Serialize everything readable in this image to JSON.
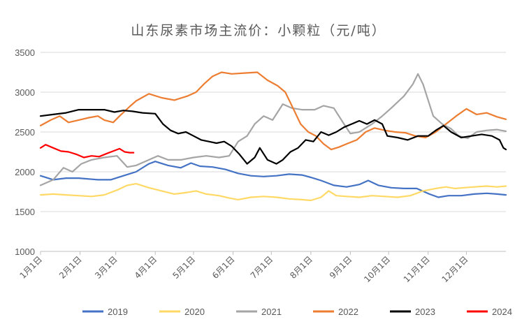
{
  "chart_data": {
    "type": "line",
    "title": "山东尿素市场主流价：小颗粒（元/吨）",
    "xlabel": "",
    "ylabel": "",
    "ylim": [
      1000,
      3500
    ],
    "yticks": [
      1000,
      1500,
      2000,
      2500,
      3000,
      3500
    ],
    "x_domain_days": [
      0,
      365
    ],
    "xtick_labels": [
      "1月1日",
      "2月1日",
      "3月1日",
      "4月1日",
      "5月1日",
      "6月1日",
      "7月1日",
      "8月1日",
      "9月1日",
      "10月1日",
      "11月1日",
      "12月1日"
    ],
    "xtick_days": [
      0,
      31,
      59,
      90,
      120,
      151,
      181,
      212,
      243,
      273,
      304,
      334
    ],
    "grid": "horizontal",
    "legend_position": "bottom",
    "series": [
      {
        "name": "2019",
        "color": "#4472C4",
        "points": [
          [
            0,
            1950
          ],
          [
            10,
            1900
          ],
          [
            20,
            1920
          ],
          [
            30,
            1920
          ],
          [
            45,
            1900
          ],
          [
            55,
            1900
          ],
          [
            65,
            1950
          ],
          [
            75,
            2000
          ],
          [
            85,
            2100
          ],
          [
            90,
            2130
          ],
          [
            100,
            2080
          ],
          [
            110,
            2050
          ],
          [
            118,
            2110
          ],
          [
            125,
            2070
          ],
          [
            135,
            2060
          ],
          [
            145,
            2030
          ],
          [
            155,
            1980
          ],
          [
            165,
            1950
          ],
          [
            175,
            1940
          ],
          [
            185,
            1950
          ],
          [
            195,
            1970
          ],
          [
            205,
            1960
          ],
          [
            212,
            1930
          ],
          [
            220,
            1890
          ],
          [
            230,
            1830
          ],
          [
            240,
            1810
          ],
          [
            250,
            1840
          ],
          [
            257,
            1890
          ],
          [
            265,
            1830
          ],
          [
            275,
            1800
          ],
          [
            285,
            1790
          ],
          [
            295,
            1790
          ],
          [
            305,
            1720
          ],
          [
            312,
            1680
          ],
          [
            320,
            1700
          ],
          [
            330,
            1700
          ],
          [
            340,
            1720
          ],
          [
            350,
            1730
          ],
          [
            358,
            1720
          ],
          [
            365,
            1710
          ]
        ]
      },
      {
        "name": "2020",
        "color": "#FFD966",
        "points": [
          [
            0,
            1710
          ],
          [
            10,
            1720
          ],
          [
            20,
            1710
          ],
          [
            30,
            1700
          ],
          [
            40,
            1690
          ],
          [
            50,
            1710
          ],
          [
            60,
            1770
          ],
          [
            68,
            1830
          ],
          [
            75,
            1850
          ],
          [
            85,
            1800
          ],
          [
            95,
            1760
          ],
          [
            105,
            1720
          ],
          [
            115,
            1740
          ],
          [
            122,
            1760
          ],
          [
            130,
            1720
          ],
          [
            140,
            1700
          ],
          [
            148,
            1670
          ],
          [
            155,
            1650
          ],
          [
            165,
            1680
          ],
          [
            175,
            1690
          ],
          [
            185,
            1680
          ],
          [
            195,
            1660
          ],
          [
            205,
            1650
          ],
          [
            212,
            1640
          ],
          [
            220,
            1680
          ],
          [
            226,
            1760
          ],
          [
            232,
            1700
          ],
          [
            240,
            1690
          ],
          [
            250,
            1680
          ],
          [
            260,
            1700
          ],
          [
            270,
            1690
          ],
          [
            280,
            1680
          ],
          [
            290,
            1700
          ],
          [
            300,
            1760
          ],
          [
            310,
            1790
          ],
          [
            318,
            1810
          ],
          [
            325,
            1790
          ],
          [
            332,
            1800
          ],
          [
            340,
            1810
          ],
          [
            350,
            1820
          ],
          [
            358,
            1810
          ],
          [
            365,
            1820
          ]
        ]
      },
      {
        "name": "2021",
        "color": "#A5A5A5",
        "points": [
          [
            0,
            1830
          ],
          [
            10,
            1900
          ],
          [
            18,
            2050
          ],
          [
            25,
            2000
          ],
          [
            32,
            2100
          ],
          [
            40,
            2150
          ],
          [
            50,
            2180
          ],
          [
            60,
            2200
          ],
          [
            68,
            2060
          ],
          [
            75,
            2080
          ],
          [
            85,
            2150
          ],
          [
            92,
            2200
          ],
          [
            100,
            2150
          ],
          [
            110,
            2150
          ],
          [
            120,
            2180
          ],
          [
            130,
            2200
          ],
          [
            140,
            2180
          ],
          [
            148,
            2200
          ],
          [
            155,
            2380
          ],
          [
            162,
            2450
          ],
          [
            168,
            2600
          ],
          [
            175,
            2700
          ],
          [
            182,
            2650
          ],
          [
            190,
            2850
          ],
          [
            197,
            2800
          ],
          [
            205,
            2780
          ],
          [
            215,
            2780
          ],
          [
            222,
            2830
          ],
          [
            230,
            2800
          ],
          [
            238,
            2600
          ],
          [
            243,
            2480
          ],
          [
            250,
            2500
          ],
          [
            260,
            2600
          ],
          [
            268,
            2700
          ],
          [
            275,
            2800
          ],
          [
            285,
            2950
          ],
          [
            292,
            3100
          ],
          [
            296,
            3230
          ],
          [
            300,
            3100
          ],
          [
            304,
            2900
          ],
          [
            308,
            2700
          ],
          [
            315,
            2600
          ],
          [
            322,
            2540
          ],
          [
            328,
            2450
          ],
          [
            335,
            2420
          ],
          [
            342,
            2500
          ],
          [
            350,
            2520
          ],
          [
            358,
            2530
          ],
          [
            365,
            2510
          ]
        ]
      },
      {
        "name": "2022",
        "color": "#ED7D31",
        "points": [
          [
            0,
            2580
          ],
          [
            8,
            2650
          ],
          [
            15,
            2700
          ],
          [
            22,
            2620
          ],
          [
            30,
            2650
          ],
          [
            38,
            2680
          ],
          [
            45,
            2700
          ],
          [
            50,
            2650
          ],
          [
            57,
            2620
          ],
          [
            62,
            2700
          ],
          [
            70,
            2820
          ],
          [
            75,
            2890
          ],
          [
            85,
            2980
          ],
          [
            95,
            2930
          ],
          [
            105,
            2900
          ],
          [
            115,
            2950
          ],
          [
            122,
            3000
          ],
          [
            128,
            3100
          ],
          [
            135,
            3200
          ],
          [
            142,
            3250
          ],
          [
            150,
            3230
          ],
          [
            160,
            3240
          ],
          [
            170,
            3250
          ],
          [
            178,
            3150
          ],
          [
            186,
            3080
          ],
          [
            192,
            3000
          ],
          [
            198,
            2800
          ],
          [
            204,
            2600
          ],
          [
            210,
            2500
          ],
          [
            216,
            2450
          ],
          [
            222,
            2350
          ],
          [
            228,
            2280
          ],
          [
            234,
            2310
          ],
          [
            240,
            2350
          ],
          [
            248,
            2400
          ],
          [
            255,
            2500
          ],
          [
            262,
            2550
          ],
          [
            270,
            2520
          ],
          [
            278,
            2500
          ],
          [
            286,
            2490
          ],
          [
            294,
            2450
          ],
          [
            302,
            2430
          ],
          [
            310,
            2500
          ],
          [
            318,
            2600
          ],
          [
            326,
            2700
          ],
          [
            334,
            2790
          ],
          [
            342,
            2720
          ],
          [
            350,
            2740
          ],
          [
            358,
            2690
          ],
          [
            365,
            2660
          ]
        ]
      },
      {
        "name": "2023",
        "color": "#000000",
        "points": [
          [
            0,
            2700
          ],
          [
            10,
            2720
          ],
          [
            20,
            2740
          ],
          [
            30,
            2780
          ],
          [
            40,
            2780
          ],
          [
            50,
            2780
          ],
          [
            58,
            2750
          ],
          [
            65,
            2770
          ],
          [
            72,
            2760
          ],
          [
            80,
            2740
          ],
          [
            90,
            2730
          ],
          [
            96,
            2600
          ],
          [
            102,
            2520
          ],
          [
            108,
            2480
          ],
          [
            114,
            2500
          ],
          [
            120,
            2450
          ],
          [
            126,
            2400
          ],
          [
            132,
            2380
          ],
          [
            138,
            2360
          ],
          [
            144,
            2380
          ],
          [
            150,
            2320
          ],
          [
            156,
            2220
          ],
          [
            162,
            2100
          ],
          [
            168,
            2180
          ],
          [
            172,
            2300
          ],
          [
            178,
            2150
          ],
          [
            185,
            2100
          ],
          [
            190,
            2150
          ],
          [
            196,
            2250
          ],
          [
            202,
            2300
          ],
          [
            208,
            2400
          ],
          [
            214,
            2380
          ],
          [
            220,
            2500
          ],
          [
            226,
            2460
          ],
          [
            232,
            2500
          ],
          [
            238,
            2560
          ],
          [
            244,
            2600
          ],
          [
            250,
            2640
          ],
          [
            256,
            2600
          ],
          [
            262,
            2650
          ],
          [
            268,
            2600
          ],
          [
            272,
            2450
          ],
          [
            280,
            2430
          ],
          [
            288,
            2400
          ],
          [
            296,
            2450
          ],
          [
            304,
            2450
          ],
          [
            310,
            2520
          ],
          [
            316,
            2580
          ],
          [
            322,
            2500
          ],
          [
            330,
            2430
          ],
          [
            338,
            2450
          ],
          [
            346,
            2470
          ],
          [
            354,
            2450
          ],
          [
            360,
            2400
          ],
          [
            363,
            2300
          ],
          [
            365,
            2280
          ]
        ]
      },
      {
        "name": "2024",
        "color": "#FF0000",
        "points": [
          [
            0,
            2300
          ],
          [
            4,
            2340
          ],
          [
            10,
            2300
          ],
          [
            16,
            2260
          ],
          [
            22,
            2250
          ],
          [
            28,
            2220
          ],
          [
            34,
            2180
          ],
          [
            40,
            2200
          ],
          [
            46,
            2190
          ],
          [
            52,
            2230
          ],
          [
            57,
            2260
          ],
          [
            62,
            2290
          ],
          [
            66,
            2250
          ],
          [
            70,
            2240
          ],
          [
            73,
            2240
          ]
        ]
      }
    ]
  }
}
